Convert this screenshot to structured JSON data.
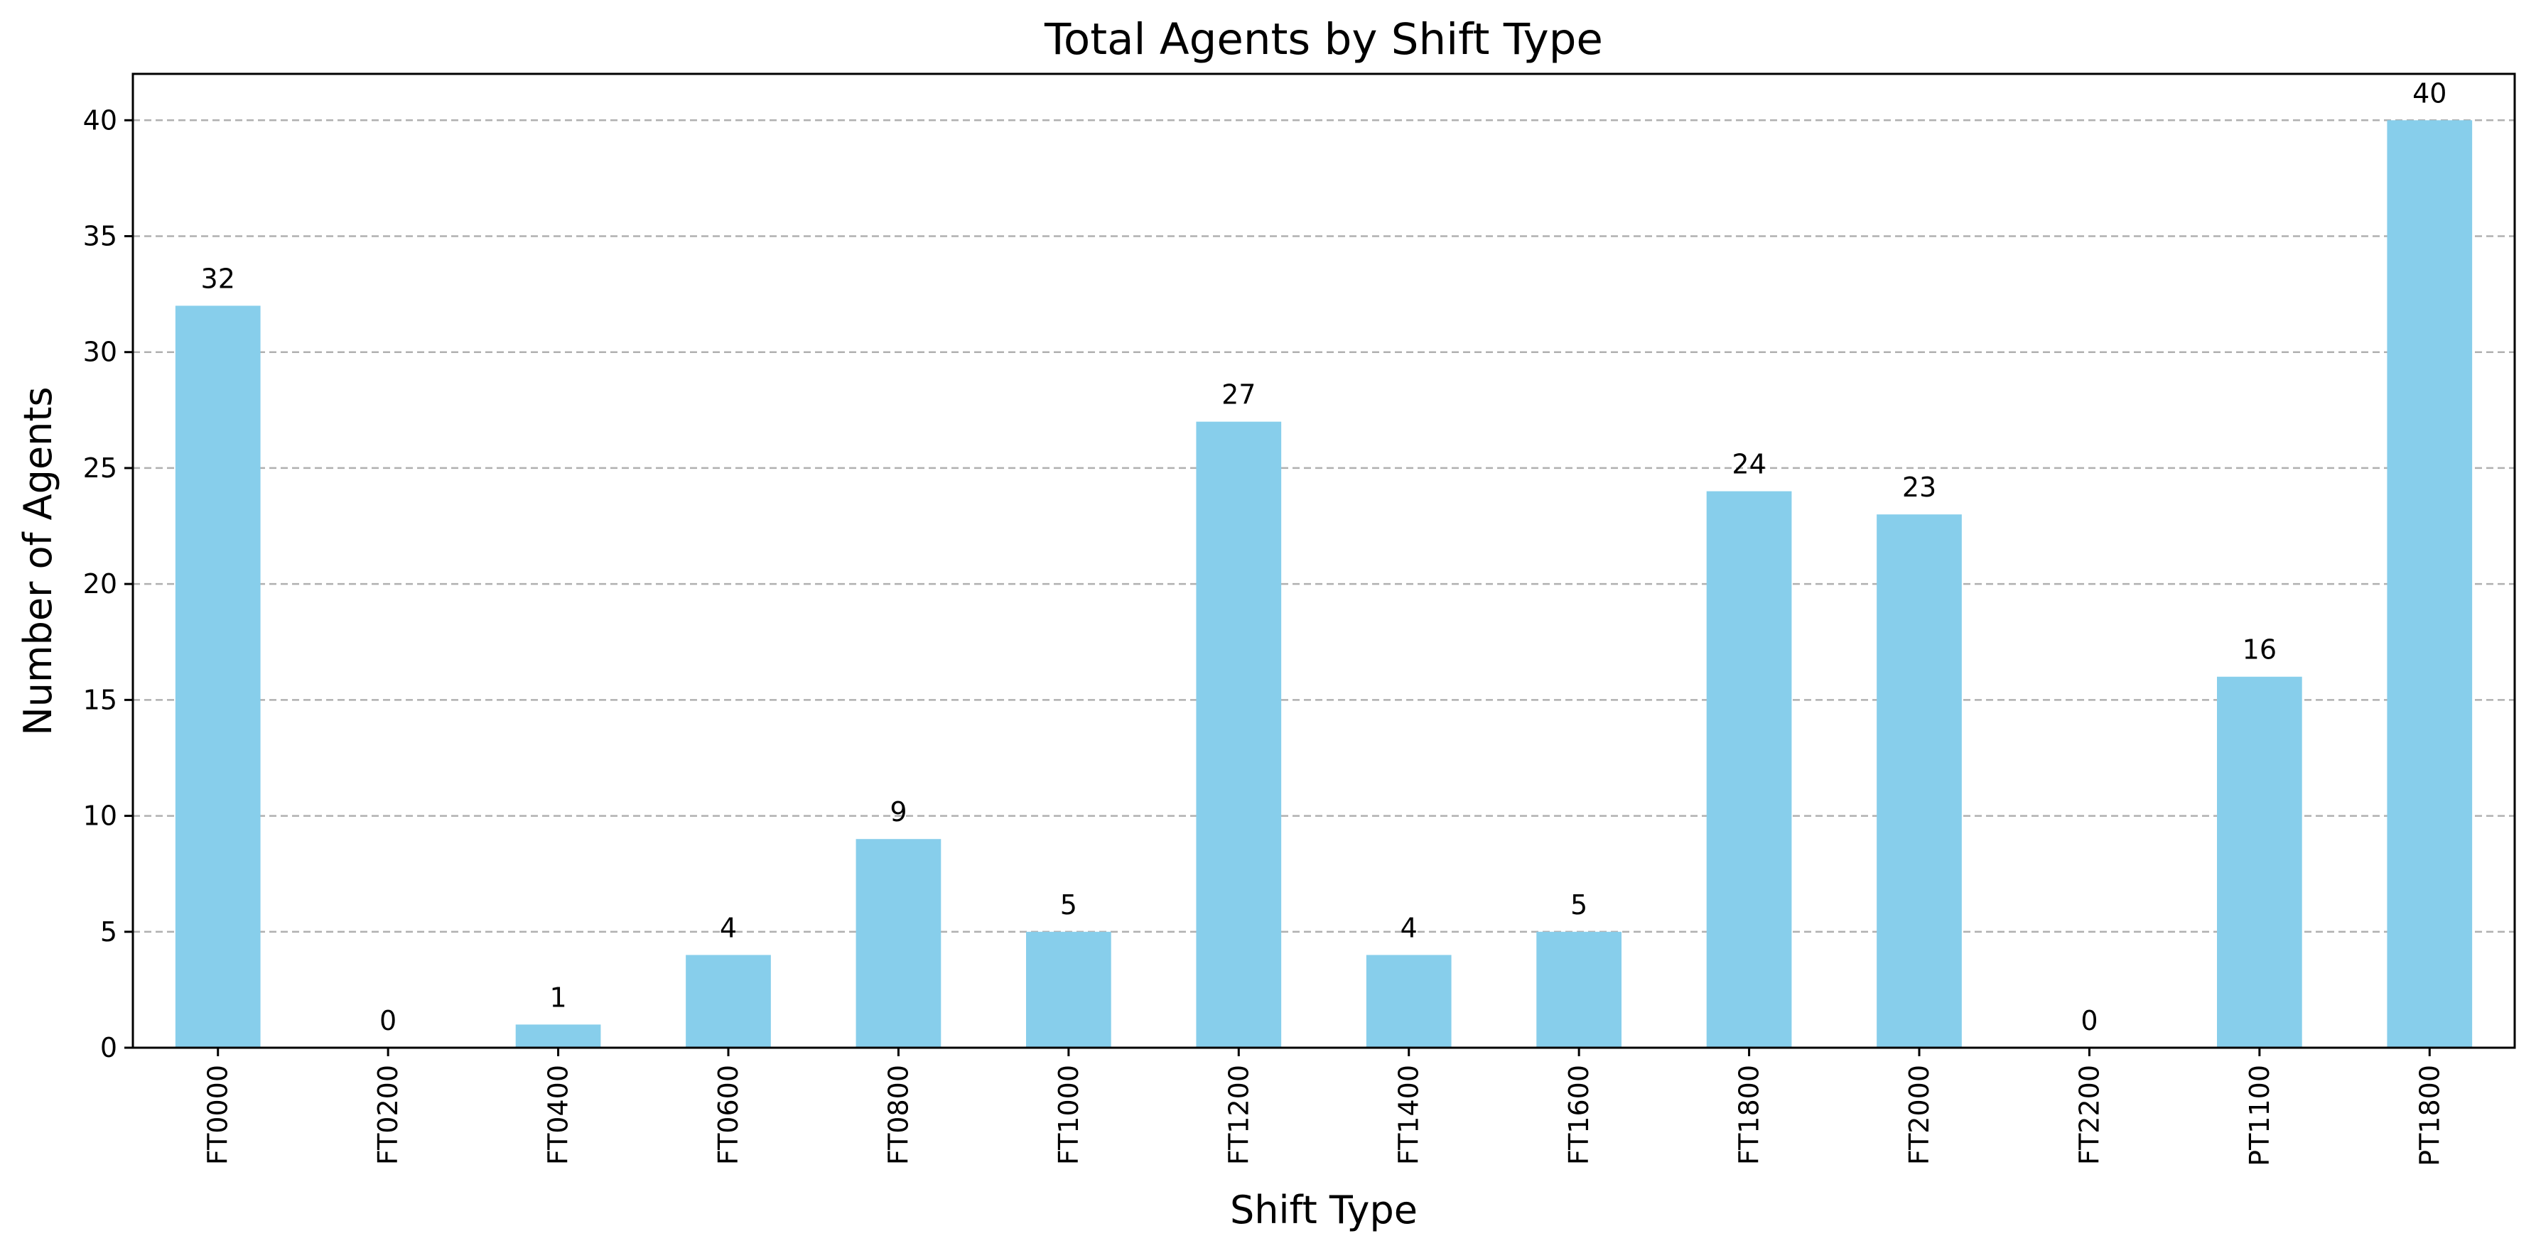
{
  "chart_data": {
    "type": "bar",
    "title": "Total Agents by Shift Type",
    "xlabel": "Shift Type",
    "ylabel": "Number of Agents",
    "categories": [
      "FT0000",
      "FT0200",
      "FT0400",
      "FT0600",
      "FT0800",
      "FT1000",
      "FT1200",
      "FT1400",
      "FT1600",
      "FT1800",
      "FT2000",
      "FT2200",
      "PT1100",
      "PT1800"
    ],
    "values": [
      32,
      0,
      1,
      4,
      9,
      5,
      27,
      4,
      5,
      24,
      23,
      0,
      16,
      40
    ],
    "ylim": [
      0,
      42
    ],
    "yticks": [
      0,
      5,
      10,
      15,
      20,
      25,
      30,
      35,
      40
    ],
    "grid": "y-dashed",
    "bar_color": "#87CEEB",
    "grid_color": "#b0b0b0"
  }
}
